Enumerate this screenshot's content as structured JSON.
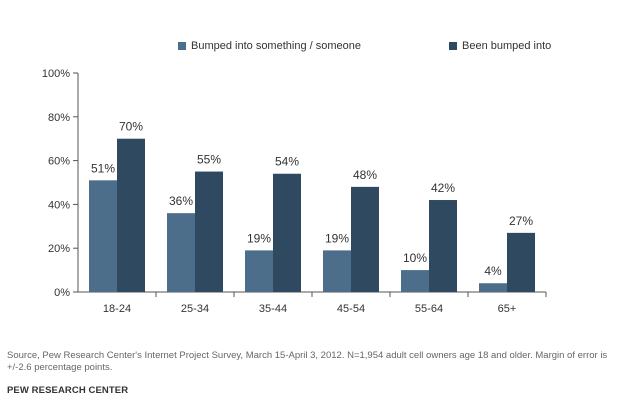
{
  "colors": {
    "series1": "#4c6e8a",
    "series2": "#2f4a60",
    "axis": "#555555",
    "text": "#333333"
  },
  "legend": {
    "items": [
      {
        "label": "Bumped into something /  someone",
        "color": "#4c6e8a"
      },
      {
        "label": "Been bumped into",
        "color": "#2f4a60"
      }
    ]
  },
  "chart_data": {
    "type": "bar",
    "categories": [
      "18-24",
      "25-34",
      "35-44",
      "45-54",
      "55-64",
      "65+"
    ],
    "series": [
      {
        "name": "Bumped into something /  someone",
        "values": [
          51,
          36,
          19,
          19,
          10,
          4
        ],
        "color": "#4c6e8a"
      },
      {
        "name": "Been bumped into",
        "values": [
          70,
          55,
          54,
          48,
          42,
          27
        ],
        "color": "#2f4a60"
      }
    ],
    "data_labels": [
      [
        "51%",
        "36%",
        "19%",
        "19%",
        "10%",
        "4%"
      ],
      [
        "70%",
        "55%",
        "54%",
        "48%",
        "42%",
        "27%"
      ]
    ],
    "yticks": [
      0,
      20,
      40,
      60,
      80,
      100
    ],
    "ytick_labels": [
      "0%",
      "20%",
      "40%",
      "60%",
      "80%",
      "100%"
    ],
    "ylim": [
      0,
      100
    ],
    "grid": false,
    "legend_position": "top"
  },
  "source": "Source, Pew Research Center's Internet Project Survey, March 15-April 3, 2012. N=1,954 adult cell owners age 18 and older. Margin of error is +/-2.6 percentage points.",
  "organization": "PEW RESEARCH CENTER"
}
